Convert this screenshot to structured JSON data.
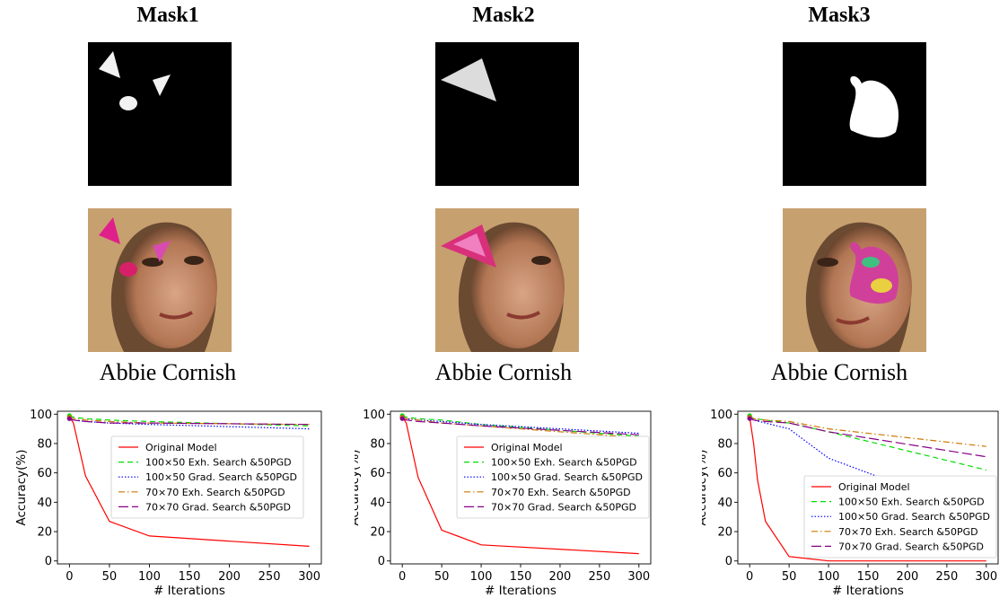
{
  "columns": [
    {
      "title": "Mask1",
      "person": "Abbie Cornish"
    },
    {
      "title": "Mask2",
      "person": "Abbie Cornish"
    },
    {
      "title": "Mask3",
      "person": "Abbie Cornish"
    }
  ],
  "chart_data": [
    {
      "type": "line",
      "xlabel": "# Iterations",
      "ylabel": "Accuracy(%)",
      "xlim": [
        -15,
        315
      ],
      "ylim": [
        -2,
        102
      ],
      "xticks": [
        0,
        50,
        100,
        150,
        200,
        250,
        300
      ],
      "yticks": [
        0,
        20,
        40,
        60,
        80,
        100
      ],
      "legend_position": "center-right",
      "series": [
        {
          "name": "Original Model",
          "color": "#ff0000",
          "dash": "solid",
          "x": [
            0,
            5,
            20,
            50,
            100,
            300
          ],
          "y": [
            98,
            94,
            58,
            27,
            17,
            10
          ]
        },
        {
          "name": "100×50 Exh. Search &50PGD",
          "color": "#00dd00",
          "dash": "dashed",
          "x": [
            0,
            5,
            20,
            50,
            100,
            300
          ],
          "y": [
            99,
            98,
            97,
            96,
            95,
            92
          ]
        },
        {
          "name": "100×50 Grad. Search &50PGD",
          "color": "#0000ff",
          "dash": "dotted",
          "x": [
            0,
            5,
            20,
            50,
            100,
            300
          ],
          "y": [
            97,
            96,
            95,
            94,
            93,
            90
          ]
        },
        {
          "name": "70×70 Exh. Search &50PGD",
          "color": "#cc7700",
          "dash": "dashdot",
          "x": [
            0,
            5,
            20,
            50,
            100,
            300
          ],
          "y": [
            98,
            97,
            96,
            95,
            94,
            93
          ]
        },
        {
          "name": "70×70 Grad. Search &50PGD",
          "color": "#880088",
          "dash": "longdash",
          "x": [
            0,
            5,
            20,
            50,
            100,
            300
          ],
          "y": [
            97,
            96,
            95,
            94,
            94,
            93
          ]
        }
      ]
    },
    {
      "type": "line",
      "xlabel": "# Iterations",
      "ylabel": "Accuracy(%)",
      "xlim": [
        -15,
        315
      ],
      "ylim": [
        -2,
        102
      ],
      "xticks": [
        0,
        50,
        100,
        150,
        200,
        250,
        300
      ],
      "yticks": [
        0,
        20,
        40,
        60,
        80,
        100
      ],
      "legend_position": "center-right",
      "series": [
        {
          "name": "Original Model",
          "color": "#ff0000",
          "dash": "solid",
          "x": [
            0,
            5,
            20,
            50,
            100,
            300
          ],
          "y": [
            98,
            94,
            57,
            21,
            11,
            5
          ]
        },
        {
          "name": "100×50 Exh. Search &50PGD",
          "color": "#00dd00",
          "dash": "dashed",
          "x": [
            0,
            5,
            20,
            50,
            100,
            300
          ],
          "y": [
            99,
            98,
            97,
            96,
            93,
            85
          ]
        },
        {
          "name": "100×50 Grad. Search &50PGD",
          "color": "#0000ff",
          "dash": "dotted",
          "x": [
            0,
            5,
            20,
            50,
            100,
            300
          ],
          "y": [
            98,
            97,
            96,
            95,
            93,
            87
          ]
        },
        {
          "name": "70×70 Exh. Search &50PGD",
          "color": "#cc7700",
          "dash": "dashdot",
          "x": [
            0,
            5,
            20,
            50,
            100,
            300
          ],
          "y": [
            98,
            97,
            96,
            94,
            92,
            84
          ]
        },
        {
          "name": "70×70 Grad. Search &50PGD",
          "color": "#880088",
          "dash": "longdash",
          "x": [
            0,
            5,
            20,
            50,
            100,
            300
          ],
          "y": [
            97,
            96,
            95,
            94,
            92,
            86
          ]
        }
      ]
    },
    {
      "type": "line",
      "xlabel": "# Iterations",
      "ylabel": "Accuracy(%)",
      "xlim": [
        -15,
        315
      ],
      "ylim": [
        -2,
        102
      ],
      "xticks": [
        0,
        50,
        100,
        150,
        200,
        250,
        300
      ],
      "yticks": [
        0,
        20,
        40,
        60,
        80,
        100
      ],
      "legend_position": "lower-right",
      "series": [
        {
          "name": "Original Model",
          "color": "#ff0000",
          "dash": "solid",
          "x": [
            0,
            5,
            10,
            20,
            50,
            100,
            300
          ],
          "y": [
            98,
            80,
            55,
            27,
            3,
            0,
            0
          ]
        },
        {
          "name": "100×50 Exh. Search &50PGD",
          "color": "#00dd00",
          "dash": "dashed",
          "x": [
            0,
            5,
            20,
            50,
            100,
            300
          ],
          "y": [
            99,
            97,
            96,
            94,
            88,
            62
          ]
        },
        {
          "name": "100×50 Grad. Search &50PGD",
          "color": "#0000ff",
          "dash": "dotted",
          "x": [
            0,
            5,
            20,
            50,
            100,
            300
          ],
          "y": [
            98,
            96,
            94,
            90,
            70,
            30
          ]
        },
        {
          "name": "70×70 Exh. Search &50PGD",
          "color": "#cc7700",
          "dash": "dashdot",
          "x": [
            0,
            5,
            20,
            50,
            100,
            300
          ],
          "y": [
            98,
            97,
            96,
            95,
            90,
            78
          ]
        },
        {
          "name": "70×70 Grad. Search &50PGD",
          "color": "#880088",
          "dash": "longdash",
          "x": [
            0,
            5,
            20,
            50,
            100,
            300
          ],
          "y": [
            97,
            96,
            95,
            94,
            88,
            71
          ]
        }
      ]
    }
  ]
}
